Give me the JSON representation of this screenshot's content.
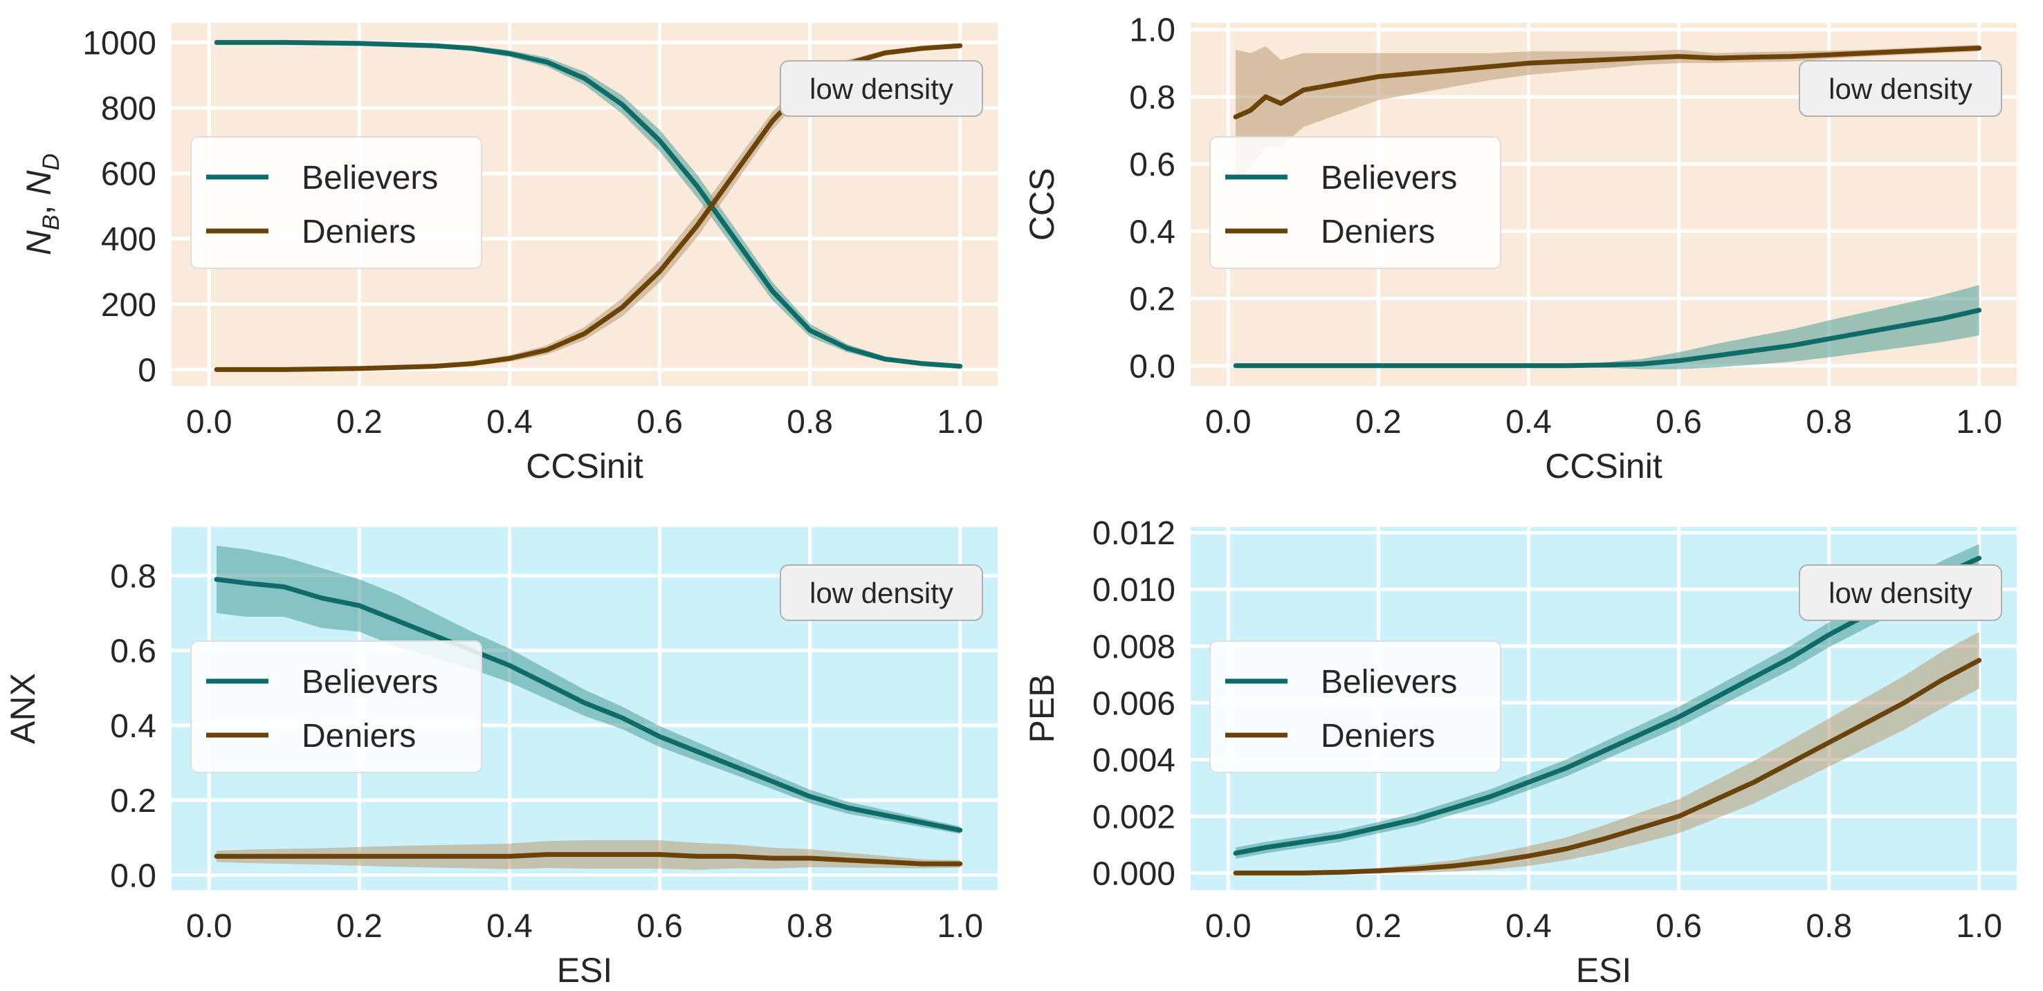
{
  "figure": {
    "background": "#ffffff"
  },
  "colors": {
    "believers": "#0e6b68",
    "deniers": "#6b4309",
    "believers_band": "#4d9c98",
    "deniers_band": "#b99a74",
    "top_bg": "#faeadc",
    "bottom_bg": "#ccf1fb",
    "grid": "#ffffff"
  },
  "chart_data": [
    {
      "id": "p1",
      "type": "line",
      "background": "top",
      "xlabel": "CCSinit",
      "ylabel_main": "N",
      "ylabel_sub1": "B",
      "ylabel_sep": ", ",
      "ylabel_sub2": "D",
      "xlim": [
        -0.05,
        1.05
      ],
      "ylim": [
        -50,
        1060
      ],
      "xticks": [
        0,
        0.2,
        0.4,
        0.6,
        0.8,
        1.0
      ],
      "xtick_labels": [
        "0.0",
        "0.2",
        "0.4",
        "0.6",
        "0.8",
        "1.0"
      ],
      "yticks": [
        0,
        200,
        400,
        600,
        800,
        1000
      ],
      "ytick_labels": [
        "0",
        "200",
        "400",
        "600",
        "800",
        "1000"
      ],
      "legend": {
        "placement": "center-left",
        "entries": [
          "Believers",
          "Deniers"
        ]
      },
      "annotation": "low density",
      "x": [
        0.01,
        0.1,
        0.2,
        0.3,
        0.35,
        0.4,
        0.45,
        0.5,
        0.55,
        0.6,
        0.65,
        0.7,
        0.75,
        0.8,
        0.85,
        0.9,
        0.95,
        1.0
      ],
      "series": [
        {
          "name": "Believers",
          "values": [
            1000,
            1000,
            997,
            990,
            982,
            966,
            940,
            890,
            810,
            700,
            560,
            400,
            240,
            120,
            65,
            32,
            18,
            10
          ],
          "band": [
            5,
            5,
            5,
            6,
            8,
            10,
            14,
            20,
            28,
            33,
            35,
            33,
            28,
            20,
            12,
            8,
            5,
            3
          ]
        },
        {
          "name": "Deniers",
          "values": [
            0,
            0,
            3,
            10,
            18,
            34,
            60,
            110,
            190,
            300,
            440,
            600,
            760,
            880,
            935,
            968,
            982,
            990
          ],
          "band": [
            2,
            2,
            3,
            5,
            8,
            10,
            14,
            20,
            28,
            33,
            35,
            33,
            28,
            20,
            12,
            8,
            5,
            3
          ]
        }
      ]
    },
    {
      "id": "p2",
      "type": "line",
      "background": "top",
      "xlabel": "CCSinit",
      "ylabel_main": "CCS",
      "ylabel_sub1": "",
      "ylabel_sep": "",
      "ylabel_sub2": "",
      "xlim": [
        -0.05,
        1.05
      ],
      "ylim": [
        -0.06,
        1.02
      ],
      "xticks": [
        0,
        0.2,
        0.4,
        0.6,
        0.8,
        1.0
      ],
      "xtick_labels": [
        "0.0",
        "0.2",
        "0.4",
        "0.6",
        "0.8",
        "1.0"
      ],
      "yticks": [
        0,
        0.2,
        0.4,
        0.6,
        0.8,
        1.0
      ],
      "ytick_labels": [
        "0.0",
        "0.2",
        "0.4",
        "0.6",
        "0.8",
        "1.0"
      ],
      "legend": {
        "placement": "center-left",
        "entries": [
          "Believers",
          "Deniers"
        ]
      },
      "annotation": "low density",
      "x": [
        0.01,
        0.03,
        0.05,
        0.07,
        0.1,
        0.15,
        0.2,
        0.25,
        0.3,
        0.35,
        0.4,
        0.45,
        0.5,
        0.55,
        0.6,
        0.65,
        0.7,
        0.75,
        0.8,
        0.85,
        0.9,
        0.95,
        1.0
      ],
      "series": [
        {
          "name": "Believers",
          "values": [
            0,
            0,
            0,
            0,
            0,
            0,
            0,
            0,
            0,
            0,
            0,
            0,
            0.002,
            0.005,
            0.015,
            0.03,
            0.045,
            0.06,
            0.08,
            0.1,
            0.12,
            0.14,
            0.165
          ],
          "band": [
            0.002,
            0.002,
            0.002,
            0.002,
            0.002,
            0.002,
            0.002,
            0.002,
            0.002,
            0.002,
            0.003,
            0.004,
            0.008,
            0.015,
            0.025,
            0.035,
            0.042,
            0.048,
            0.055,
            0.06,
            0.065,
            0.07,
            0.075
          ]
        },
        {
          "name": "Deniers",
          "values": [
            0.74,
            0.76,
            0.8,
            0.78,
            0.82,
            0.84,
            0.86,
            0.87,
            0.88,
            0.89,
            0.9,
            0.905,
            0.91,
            0.915,
            0.92,
            0.915,
            0.918,
            0.92,
            0.925,
            0.93,
            0.935,
            0.94,
            0.945
          ],
          "band": [
            0.2,
            0.17,
            0.15,
            0.13,
            0.11,
            0.09,
            0.07,
            0.06,
            0.05,
            0.04,
            0.035,
            0.03,
            0.025,
            0.02,
            0.02,
            0.015,
            0.015,
            0.015,
            0.012,
            0.01,
            0.01,
            0.01,
            0.01
          ]
        }
      ]
    },
    {
      "id": "p3",
      "type": "line",
      "background": "bottom",
      "xlabel": "ESI",
      "ylabel_main": "ANX",
      "ylabel_sub1": "",
      "ylabel_sep": "",
      "ylabel_sub2": "",
      "xlim": [
        -0.05,
        1.05
      ],
      "ylim": [
        -0.04,
        0.93
      ],
      "xticks": [
        0,
        0.2,
        0.4,
        0.6,
        0.8,
        1.0
      ],
      "xtick_labels": [
        "0.0",
        "0.2",
        "0.4",
        "0.6",
        "0.8",
        "1.0"
      ],
      "yticks": [
        0,
        0.2,
        0.4,
        0.6,
        0.8
      ],
      "ytick_labels": [
        "0.0",
        "0.2",
        "0.4",
        "0.6",
        "0.8"
      ],
      "legend": {
        "placement": "center-left",
        "entries": [
          "Believers",
          "Deniers"
        ]
      },
      "annotation": "low density",
      "x": [
        0.01,
        0.05,
        0.1,
        0.15,
        0.2,
        0.25,
        0.3,
        0.35,
        0.4,
        0.45,
        0.5,
        0.55,
        0.6,
        0.65,
        0.7,
        0.75,
        0.8,
        0.85,
        0.9,
        0.95,
        1.0
      ],
      "series": [
        {
          "name": "Believers",
          "values": [
            0.79,
            0.78,
            0.77,
            0.74,
            0.72,
            0.68,
            0.64,
            0.6,
            0.56,
            0.51,
            0.46,
            0.42,
            0.37,
            0.33,
            0.29,
            0.25,
            0.21,
            0.18,
            0.16,
            0.14,
            0.12
          ],
          "band": [
            0.09,
            0.09,
            0.08,
            0.08,
            0.07,
            0.07,
            0.06,
            0.05,
            0.045,
            0.04,
            0.035,
            0.03,
            0.028,
            0.025,
            0.022,
            0.02,
            0.018,
            0.016,
            0.014,
            0.012,
            0.01
          ]
        },
        {
          "name": "Deniers",
          "values": [
            0.05,
            0.05,
            0.05,
            0.05,
            0.05,
            0.05,
            0.05,
            0.05,
            0.05,
            0.055,
            0.055,
            0.055,
            0.055,
            0.05,
            0.05,
            0.045,
            0.045,
            0.04,
            0.035,
            0.03,
            0.03
          ],
          "band": [
            0.015,
            0.018,
            0.02,
            0.022,
            0.025,
            0.028,
            0.03,
            0.032,
            0.034,
            0.036,
            0.038,
            0.038,
            0.038,
            0.036,
            0.032,
            0.028,
            0.024,
            0.02,
            0.016,
            0.012,
            0.01
          ]
        }
      ]
    },
    {
      "id": "p4",
      "type": "line",
      "background": "bottom",
      "xlabel": "ESI",
      "ylabel_main": "PEB",
      "ylabel_sub1": "",
      "ylabel_sep": "",
      "ylabel_sub2": "",
      "xlim": [
        -0.05,
        1.05
      ],
      "ylim": [
        -0.0006,
        0.0122
      ],
      "xticks": [
        0,
        0.2,
        0.4,
        0.6,
        0.8,
        1.0
      ],
      "xtick_labels": [
        "0.0",
        "0.2",
        "0.4",
        "0.6",
        "0.8",
        "1.0"
      ],
      "yticks": [
        0,
        0.002,
        0.004,
        0.006,
        0.008,
        0.01,
        0.012
      ],
      "ytick_labels": [
        "0.000",
        "0.002",
        "0.004",
        "0.006",
        "0.008",
        "0.010",
        "0.012"
      ],
      "legend": {
        "placement": "center-left",
        "entries": [
          "Believers",
          "Deniers"
        ]
      },
      "annotation": "low density",
      "x": [
        0.01,
        0.05,
        0.1,
        0.15,
        0.2,
        0.25,
        0.3,
        0.35,
        0.4,
        0.45,
        0.5,
        0.55,
        0.6,
        0.65,
        0.7,
        0.75,
        0.8,
        0.85,
        0.9,
        0.95,
        1.0
      ],
      "series": [
        {
          "name": "Believers",
          "values": [
            0.0007,
            0.0009,
            0.0011,
            0.0013,
            0.0016,
            0.0019,
            0.0023,
            0.0027,
            0.0032,
            0.0037,
            0.0043,
            0.0049,
            0.0055,
            0.0062,
            0.0069,
            0.0076,
            0.0084,
            0.0091,
            0.0098,
            0.0105,
            0.0111
          ],
          "band": [
            0.0002,
            0.0002,
            0.0002,
            0.0002,
            0.0002,
            0.00022,
            0.00024,
            0.00026,
            0.00028,
            0.0003,
            0.00032,
            0.00034,
            0.00036,
            0.00038,
            0.0004,
            0.00042,
            0.00044,
            0.00046,
            0.00048,
            0.0005,
            0.0005
          ]
        },
        {
          "name": "Deniers",
          "values": [
            0,
            0,
            0,
            3e-05,
            8e-05,
            0.00015,
            0.00025,
            0.0004,
            0.0006,
            0.00085,
            0.0012,
            0.0016,
            0.002,
            0.0026,
            0.0032,
            0.0039,
            0.0046,
            0.0053,
            0.006,
            0.0068,
            0.0075
          ],
          "band": [
            3e-05,
            3e-05,
            4e-05,
            6e-05,
            0.0001,
            0.00015,
            0.0002,
            0.00028,
            0.00035,
            0.0004,
            0.00048,
            0.00055,
            0.0006,
            0.00068,
            0.00075,
            0.0008,
            0.00085,
            0.0009,
            0.00095,
            0.001,
            0.001
          ]
        }
      ]
    }
  ]
}
